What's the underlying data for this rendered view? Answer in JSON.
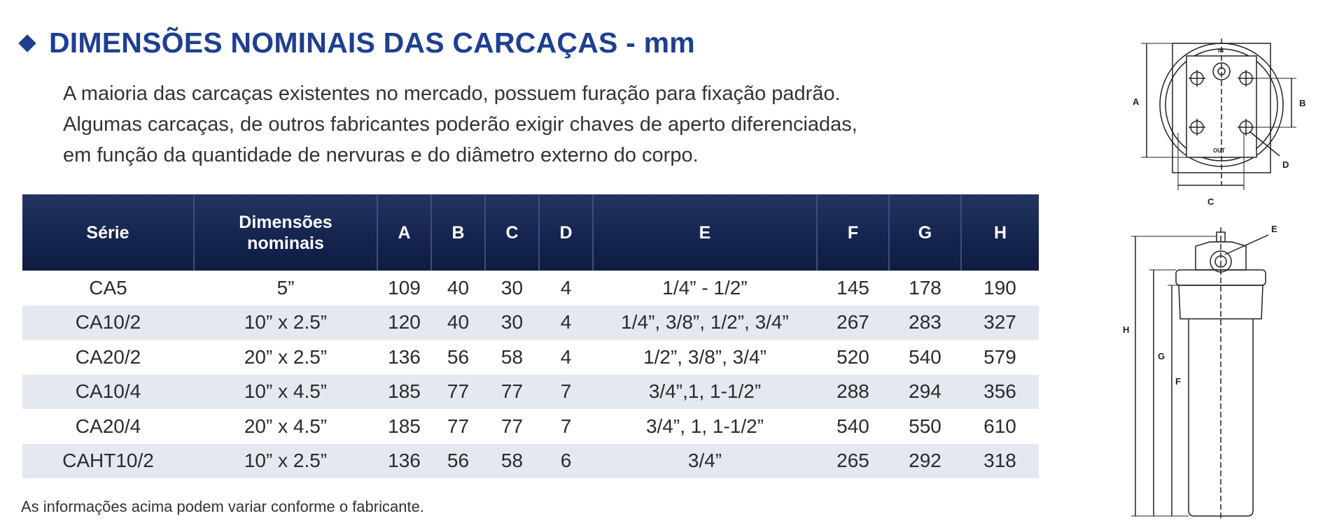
{
  "header": {
    "title": "DIMENSÕES NOMINAIS DAS CARCAÇAS - mm"
  },
  "intro": {
    "lines": [
      "A maioria das carcaças existentes no mercado, possuem furação para fixação padrão.",
      "Algumas carcaças, de outros fabricantes poderão exigir chaves de aperto diferenciadas,",
      "em função da quantidade de nervuras e do diâmetro externo do corpo."
    ]
  },
  "table": {
    "headers": {
      "serie": "Série",
      "dim_line1": "Dimensões",
      "dim_line2": "nominais",
      "a": "A",
      "b": "B",
      "c": "C",
      "d": "D",
      "e": "E",
      "f": "F",
      "g": "G",
      "h": "H"
    },
    "rows": [
      [
        "CA5",
        "5”",
        "109",
        "40",
        "30",
        "4",
        "1/4” - 1/2”",
        "145",
        "178",
        "190"
      ],
      [
        "CA10/2",
        "10” x 2.5”",
        "120",
        "40",
        "30",
        "4",
        "1/4”, 3/8”, 1/2”, 3/4”",
        "267",
        "283",
        "327"
      ],
      [
        "CA20/2",
        "20” x 2.5”",
        "136",
        "56",
        "58",
        "4",
        "1/2”, 3/8”, 3/4”",
        "520",
        "540",
        "579"
      ],
      [
        "CA10/4",
        "10” x 4.5”",
        "185",
        "77",
        "77",
        "7",
        "3/4”,1, 1-1/2”",
        "288",
        "294",
        "356"
      ],
      [
        "CA20/4",
        "20” x 4.5”",
        "185",
        "77",
        "77",
        "7",
        "3/4”, 1, 1-1/2”",
        "540",
        "550",
        "610"
      ],
      [
        "CAHT10/2",
        "10” x 2.5”",
        "136",
        "56",
        "58",
        "6",
        "3/4”",
        "265",
        "292",
        "318"
      ]
    ]
  },
  "footnote": "As informações acima podem variar conforme o fabricante.",
  "diagram_top": {
    "label_a": "A",
    "label_b": "B",
    "label_c": "C",
    "label_d": "D",
    "label_in": "IN",
    "label_out": "OUT"
  },
  "diagram_side": {
    "label_e": "E",
    "label_f": "F",
    "label_g": "G",
    "label_h": "H"
  },
  "colors": {
    "title": "#1f3f8f",
    "header_bg": "#152550",
    "row_alt": "#e4e8f0"
  }
}
